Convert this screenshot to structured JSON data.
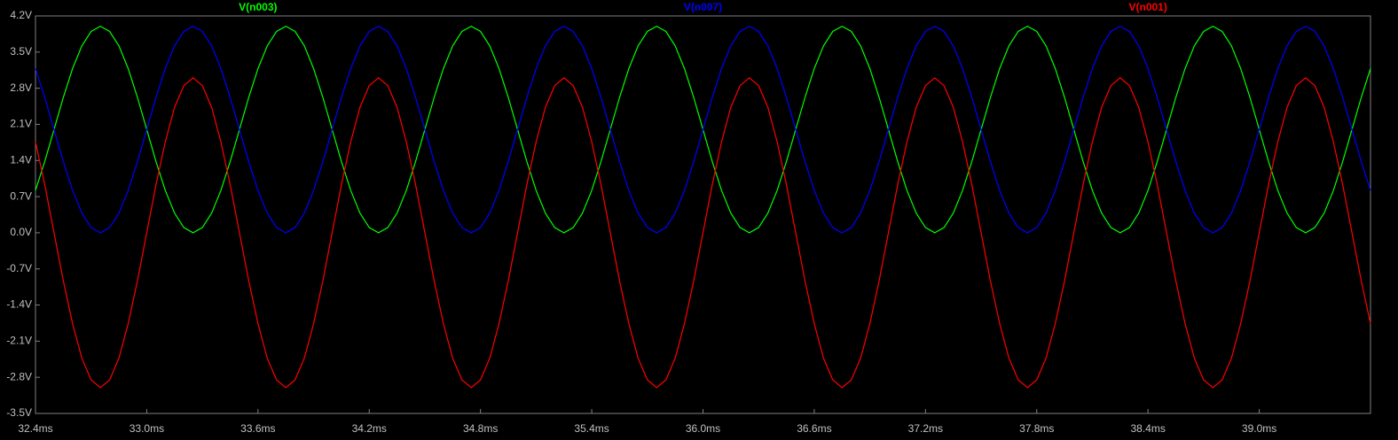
{
  "chart_data": {
    "type": "line",
    "x": [
      32.4,
      32.45,
      32.5,
      32.55,
      32.6,
      32.65,
      32.7,
      32.75,
      32.8,
      32.85,
      32.9,
      32.95,
      33,
      33.05,
      33.1,
      33.15,
      33.2,
      33.25,
      33.3,
      33.35,
      33.4,
      33.45,
      33.5,
      33.55,
      33.6,
      33.65,
      33.7,
      33.75,
      33.8,
      33.85,
      33.9,
      33.95,
      34,
      34.05,
      34.1,
      34.15,
      34.2,
      34.25,
      34.3,
      34.35,
      34.4,
      34.45,
      34.5,
      34.55,
      34.6,
      34.65,
      34.7,
      34.75,
      34.8,
      34.85,
      34.9,
      34.95,
      35,
      35.05,
      35.1,
      35.15,
      35.2,
      35.25,
      35.3,
      35.35,
      35.4,
      35.45,
      35.5,
      35.55,
      35.6,
      35.65,
      35.7,
      35.75,
      35.8,
      35.85,
      35.9,
      35.95,
      36,
      36.05,
      36.1,
      36.15,
      36.2,
      36.25,
      36.3,
      36.35,
      36.4,
      36.45,
      36.5,
      36.55,
      36.6,
      36.65,
      36.7,
      36.75,
      36.8,
      36.85,
      36.9,
      36.95,
      37,
      37.05,
      37.1,
      37.15,
      37.2,
      37.25,
      37.3,
      37.35,
      37.4,
      37.45,
      37.5,
      37.55,
      37.6,
      37.65,
      37.7,
      37.75,
      37.8,
      37.85,
      37.9,
      37.95,
      38,
      38.05,
      38.1,
      38.15,
      38.2,
      38.25,
      38.3,
      38.35,
      38.4,
      38.45,
      38.5,
      38.55,
      38.6,
      38.65,
      38.7,
      38.75,
      38.8,
      38.85,
      38.9,
      38.95,
      39,
      39.05,
      39.1,
      39.15,
      39.2,
      39.25,
      39.3,
      39.35,
      39.4,
      39.45,
      39.5,
      39.55,
      39.6
    ],
    "series": [
      {
        "name": "V(n003)",
        "color": "#00ff00",
        "values": [
          0.82,
          1.38,
          2,
          2.62,
          3.18,
          3.62,
          3.9,
          4,
          3.9,
          3.62,
          3.18,
          2.62,
          2,
          1.38,
          0.82,
          0.38,
          0.1,
          0,
          0.1,
          0.38,
          0.82,
          1.38,
          2,
          2.62,
          3.18,
          3.62,
          3.9,
          4,
          3.9,
          3.62,
          3.18,
          2.62,
          2,
          1.38,
          0.82,
          0.38,
          0.1,
          0,
          0.1,
          0.38,
          0.82,
          1.38,
          2,
          2.62,
          3.18,
          3.62,
          3.9,
          4,
          3.9,
          3.62,
          3.18,
          2.62,
          2,
          1.38,
          0.82,
          0.38,
          0.1,
          0,
          0.1,
          0.38,
          0.82,
          1.38,
          2,
          2.62,
          3.18,
          3.62,
          3.9,
          4,
          3.9,
          3.62,
          3.18,
          2.62,
          2,
          1.38,
          0.82,
          0.38,
          0.1,
          0,
          0.1,
          0.38,
          0.82,
          1.38,
          2,
          2.62,
          3.18,
          3.62,
          3.9,
          4,
          3.9,
          3.62,
          3.18,
          2.62,
          2,
          1.38,
          0.82,
          0.38,
          0.1,
          0,
          0.1,
          0.38,
          0.82,
          1.38,
          2,
          2.62,
          3.18,
          3.62,
          3.9,
          4,
          3.9,
          3.62,
          3.18,
          2.62,
          2,
          1.38,
          0.82,
          0.38,
          0.1,
          0,
          0.1,
          0.38,
          0.82,
          1.38,
          2,
          2.62,
          3.18,
          3.62,
          3.9,
          4,
          3.9,
          3.62,
          3.18,
          2.62,
          2,
          1.38,
          0.82,
          0.38,
          0.1,
          0,
          0.1,
          0.38,
          0.82,
          1.38,
          2,
          2.62,
          3.18
        ]
      },
      {
        "name": "V(n007)",
        "color": "#0000ff",
        "values": [
          3.18,
          2.62,
          2,
          1.38,
          0.82,
          0.38,
          0.1,
          0,
          0.1,
          0.38,
          0.82,
          1.38,
          2,
          2.62,
          3.18,
          3.62,
          3.9,
          4,
          3.9,
          3.62,
          3.18,
          2.62,
          2,
          1.38,
          0.82,
          0.38,
          0.1,
          0,
          0.1,
          0.38,
          0.82,
          1.38,
          2,
          2.62,
          3.18,
          3.62,
          3.9,
          4,
          3.9,
          3.62,
          3.18,
          2.62,
          2,
          1.38,
          0.82,
          0.38,
          0.1,
          0,
          0.1,
          0.38,
          0.82,
          1.38,
          2,
          2.62,
          3.18,
          3.62,
          3.9,
          4,
          3.9,
          3.62,
          3.18,
          2.62,
          2,
          1.38,
          0.82,
          0.38,
          0.1,
          0,
          0.1,
          0.38,
          0.82,
          1.38,
          2,
          2.62,
          3.18,
          3.62,
          3.9,
          4,
          3.9,
          3.62,
          3.18,
          2.62,
          2,
          1.38,
          0.82,
          0.38,
          0.1,
          0,
          0.1,
          0.38,
          0.82,
          1.38,
          2,
          2.62,
          3.18,
          3.62,
          3.9,
          4,
          3.9,
          3.62,
          3.18,
          2.62,
          2,
          1.38,
          0.82,
          0.38,
          0.1,
          0,
          0.1,
          0.38,
          0.82,
          1.38,
          2,
          2.62,
          3.18,
          3.62,
          3.9,
          4,
          3.9,
          3.62,
          3.18,
          2.62,
          2,
          1.38,
          0.82,
          0.38,
          0.1,
          0,
          0.1,
          0.38,
          0.82,
          1.38,
          2,
          2.62,
          3.18,
          3.62,
          3.9,
          4,
          3.9,
          3.62,
          3.18,
          2.62,
          2,
          1.38,
          0.82
        ]
      },
      {
        "name": "V(n001)",
        "color": "#ff0000",
        "values": [
          1.76,
          0.93,
          0,
          -0.93,
          -1.76,
          -2.43,
          -2.85,
          -3,
          -2.85,
          -2.43,
          -1.76,
          -0.93,
          0,
          0.93,
          1.76,
          2.43,
          2.85,
          3,
          2.85,
          2.43,
          1.76,
          0.93,
          0,
          -0.93,
          -1.76,
          -2.43,
          -2.85,
          -3,
          -2.85,
          -2.43,
          -1.76,
          -0.93,
          0,
          0.93,
          1.76,
          2.43,
          2.85,
          3,
          2.85,
          2.43,
          1.76,
          0.93,
          0,
          -0.93,
          -1.76,
          -2.43,
          -2.85,
          -3,
          -2.85,
          -2.43,
          -1.76,
          -0.93,
          0,
          0.93,
          1.76,
          2.43,
          2.85,
          3,
          2.85,
          2.43,
          1.76,
          0.93,
          0,
          -0.93,
          -1.76,
          -2.43,
          -2.85,
          -3,
          -2.85,
          -2.43,
          -1.76,
          -0.93,
          0,
          0.93,
          1.76,
          2.43,
          2.85,
          3,
          2.85,
          2.43,
          1.76,
          0.93,
          0,
          -0.93,
          -1.76,
          -2.43,
          -2.85,
          -3,
          -2.85,
          -2.43,
          -1.76,
          -0.93,
          0,
          0.93,
          1.76,
          2.43,
          2.85,
          3,
          2.85,
          2.43,
          1.76,
          0.93,
          0,
          -0.93,
          -1.76,
          -2.43,
          -2.85,
          -3,
          -2.85,
          -2.43,
          -1.76,
          -0.93,
          0,
          0.93,
          1.76,
          2.43,
          2.85,
          3,
          2.85,
          2.43,
          1.76,
          0.93,
          0,
          -0.93,
          -1.76,
          -2.43,
          -2.85,
          -3,
          -2.85,
          -2.43,
          -1.76,
          -0.93,
          0,
          0.93,
          1.76,
          2.43,
          2.85,
          3,
          2.85,
          2.43,
          1.76,
          0.93,
          0,
          -0.93,
          -1.76
        ]
      }
    ],
    "xlim": [
      32.4,
      39.6
    ],
    "xticks": [
      {
        "value": 32.4,
        "label": "32.4ms"
      },
      {
        "value": 33.0,
        "label": "33.0ms"
      },
      {
        "value": 33.6,
        "label": "33.6ms"
      },
      {
        "value": 34.2,
        "label": "34.2ms"
      },
      {
        "value": 34.8,
        "label": "34.8ms"
      },
      {
        "value": 35.4,
        "label": "35.4ms"
      },
      {
        "value": 36.0,
        "label": "36.0ms"
      },
      {
        "value": 36.6,
        "label": "36.6ms"
      },
      {
        "value": 37.2,
        "label": "37.2ms"
      },
      {
        "value": 37.8,
        "label": "37.8ms"
      },
      {
        "value": 38.4,
        "label": "38.4ms"
      },
      {
        "value": 39.0,
        "label": "39.0ms"
      }
    ],
    "ylim": [
      -3.5,
      4.2
    ],
    "yticks": [
      {
        "value": 4.2,
        "label": "4.2V"
      },
      {
        "value": 3.5,
        "label": "3.5V"
      },
      {
        "value": 2.8,
        "label": "2.8V"
      },
      {
        "value": 2.1,
        "label": "2.1V"
      },
      {
        "value": 1.4,
        "label": "1.4V"
      },
      {
        "value": 0.7,
        "label": "0.7V"
      },
      {
        "value": 0,
        "label": "0.0V"
      },
      {
        "value": -0.7,
        "label": "-0.7V"
      },
      {
        "value": -1.4,
        "label": "-1.4V"
      },
      {
        "value": -2.1,
        "label": "-2.1V"
      },
      {
        "value": -2.8,
        "label": "-2.8V"
      },
      {
        "value": -3.5,
        "label": "-3.5V"
      }
    ],
    "grid": false
  }
}
